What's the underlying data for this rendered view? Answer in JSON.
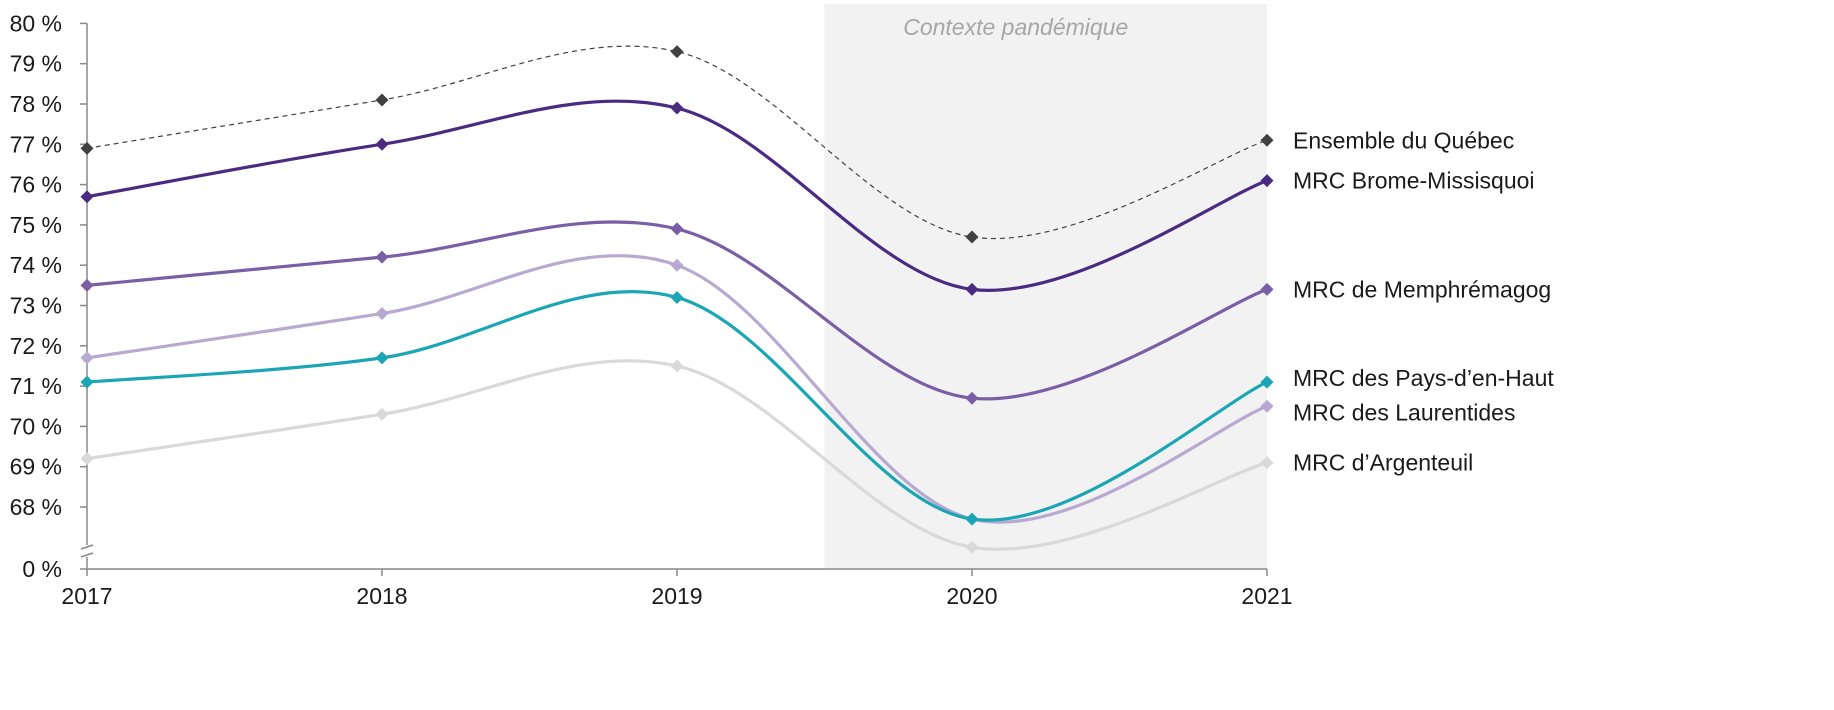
{
  "chart_data": {
    "type": "line",
    "x": [
      "2017",
      "2018",
      "2019",
      "2020",
      "2021"
    ],
    "yticks": [
      "0 %",
      "68 %",
      "69 %",
      "70 %",
      "71 %",
      "72 %",
      "73 %",
      "74 %",
      "75 %",
      "76 %",
      "77 %",
      "78 %",
      "79 %",
      "80 %"
    ],
    "ylim": [
      67.5,
      80
    ],
    "axis_break": true,
    "grid": false,
    "legend": "right, labels at line ends",
    "shaded_region": {
      "from": "2019.5",
      "to": "2021",
      "label": "Contexte pandémique",
      "color": "#f2f2f2"
    },
    "series": [
      {
        "name": "Ensemble du Québec",
        "values": [
          76.9,
          78.1,
          79.3,
          74.7,
          77.1
        ],
        "color": "#404040",
        "dashed": true
      },
      {
        "name": "MRC Brome-Missisquoi",
        "values": [
          75.7,
          77.0,
          77.9,
          73.4,
          76.1
        ],
        "color": "#4b2a82",
        "dashed": false
      },
      {
        "name": "MRC de Memphrémagog",
        "values": [
          73.5,
          74.2,
          74.9,
          70.7,
          73.4
        ],
        "color": "#7a5ea6",
        "dashed": false
      },
      {
        "name": "MRC des Pays-d’en-Haut",
        "values": [
          71.1,
          71.7,
          73.2,
          67.7,
          71.1
        ],
        "color": "#1aa6b4",
        "dashed": false
      },
      {
        "name": "MRC des Laurentides",
        "values": [
          71.7,
          72.8,
          74.0,
          67.7,
          70.5
        ],
        "color": "#b7a9d2",
        "dashed": false
      },
      {
        "name": "MRC d’Argenteuil",
        "values": [
          69.2,
          70.3,
          71.5,
          67.0,
          69.1
        ],
        "color": "#d9d9d9",
        "dashed": false
      }
    ]
  }
}
